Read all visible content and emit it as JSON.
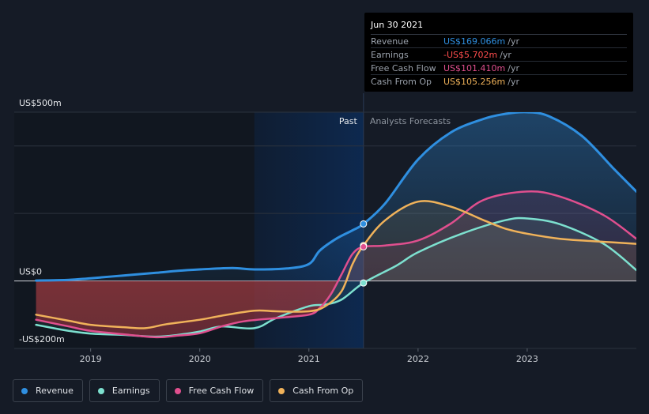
{
  "tooltip": {
    "date": "Jun 30 2021",
    "rows": [
      {
        "name": "Revenue",
        "value": "US$169.066m",
        "unit": "/yr",
        "color": "#2f8fe0"
      },
      {
        "name": "Earnings",
        "value": "-US$5.702m",
        "unit": "/yr",
        "color": "#ff4d4d"
      },
      {
        "name": "Free Cash Flow",
        "value": "US$101.410m",
        "unit": "/yr",
        "color": "#e04f8e"
      },
      {
        "name": "Cash From Op",
        "value": "US$105.256m",
        "unit": "/yr",
        "color": "#f0b25a"
      }
    ]
  },
  "region_labels": {
    "past": "Past",
    "forecast": "Analysts Forecasts"
  },
  "legend": [
    {
      "label": "Revenue",
      "color": "#2f8fe0"
    },
    {
      "label": "Earnings",
      "color": "#7de0cf"
    },
    {
      "label": "Free Cash Flow",
      "color": "#e04f8e"
    },
    {
      "label": "Cash From Op",
      "color": "#f0b25a"
    }
  ],
  "chart_data": {
    "type": "line",
    "y_tick_labels": [
      {
        "value": 500,
        "label": "US$500m"
      },
      {
        "value": 0,
        "label": "US$0"
      },
      {
        "value": -200,
        "label": "-US$200m"
      }
    ],
    "x_tick_labels": [
      {
        "value": 2019,
        "label": "2019"
      },
      {
        "value": 2020,
        "label": "2020"
      },
      {
        "value": 2021,
        "label": "2021"
      },
      {
        "value": 2022,
        "label": "2022"
      },
      {
        "value": 2023,
        "label": "2023"
      }
    ],
    "xlim": [
      2018.3,
      2024.0
    ],
    "ylim": [
      -200,
      500
    ],
    "gridlines_y": [
      500,
      400,
      200,
      0,
      -200
    ],
    "highlight_start": 2020.5,
    "divider_x": 2021.5,
    "series": [
      {
        "name": "Revenue",
        "color": "#2f8fe0",
        "x": [
          2018.5,
          2018.8,
          2019.0,
          2019.3,
          2019.6,
          2019.8,
          2020.0,
          2020.3,
          2020.5,
          2020.8,
          2021.0,
          2021.1,
          2021.25,
          2021.4,
          2021.5,
          2021.7,
          2022.0,
          2022.3,
          2022.6,
          2022.8,
          2023.0,
          2023.2,
          2023.5,
          2023.8,
          2024.0
        ],
        "y": [
          1,
          3,
          8,
          16,
          24,
          30,
          34,
          38,
          34,
          37,
          50,
          90,
          125,
          150,
          169,
          230,
          360,
          440,
          480,
          495,
          500,
          488,
          430,
          330,
          265
        ]
      },
      {
        "name": "Earnings",
        "color": "#7de0cf",
        "x": [
          2018.5,
          2018.8,
          2019.0,
          2019.3,
          2019.6,
          2019.8,
          2020.0,
          2020.2,
          2020.5,
          2020.7,
          2021.0,
          2021.15,
          2021.3,
          2021.5,
          2021.8,
          2022.0,
          2022.4,
          2022.8,
          2023.0,
          2023.3,
          2023.7,
          2024.0
        ],
        "y": [
          -130,
          -148,
          -156,
          -160,
          -165,
          -160,
          -150,
          -135,
          -140,
          -110,
          -75,
          -70,
          -55,
          -6,
          45,
          85,
          140,
          180,
          185,
          168,
          110,
          32
        ]
      },
      {
        "name": "Free Cash Flow",
        "color": "#e04f8e",
        "x": [
          2018.5,
          2018.8,
          2019.0,
          2019.3,
          2019.6,
          2019.8,
          2020.0,
          2020.2,
          2020.4,
          2020.7,
          2021.0,
          2021.1,
          2021.2,
          2021.3,
          2021.4,
          2021.5,
          2021.7,
          2022.0,
          2022.3,
          2022.6,
          2023.0,
          2023.3,
          2023.7,
          2024.0
        ],
        "y": [
          -115,
          -135,
          -148,
          -158,
          -167,
          -162,
          -155,
          -135,
          -120,
          -110,
          -100,
          -80,
          -40,
          20,
          80,
          101,
          105,
          120,
          170,
          240,
          265,
          250,
          195,
          125
        ]
      },
      {
        "name": "Cash From Op",
        "color": "#f0b25a",
        "x": [
          2018.5,
          2018.8,
          2019.0,
          2019.3,
          2019.5,
          2019.7,
          2020.0,
          2020.2,
          2020.5,
          2020.7,
          2021.0,
          2021.15,
          2021.3,
          2021.4,
          2021.5,
          2021.7,
          2022.0,
          2022.3,
          2022.6,
          2022.8,
          2023.0,
          2023.3,
          2023.6,
          2024.0
        ],
        "y": [
          -100,
          -118,
          -130,
          -137,
          -140,
          -128,
          -115,
          -103,
          -88,
          -90,
          -90,
          -75,
          -30,
          50,
          105,
          180,
          235,
          220,
          180,
          155,
          140,
          125,
          118,
          110
        ]
      }
    ],
    "markers": [
      {
        "series": "Revenue",
        "x": 2021.5,
        "y": 169
      },
      {
        "series": "Cash From Op",
        "x": 2021.5,
        "y": 105
      },
      {
        "series": "Free Cash Flow",
        "x": 2021.5,
        "y": 101
      },
      {
        "series": "Earnings",
        "x": 2021.5,
        "y": -6
      }
    ]
  }
}
